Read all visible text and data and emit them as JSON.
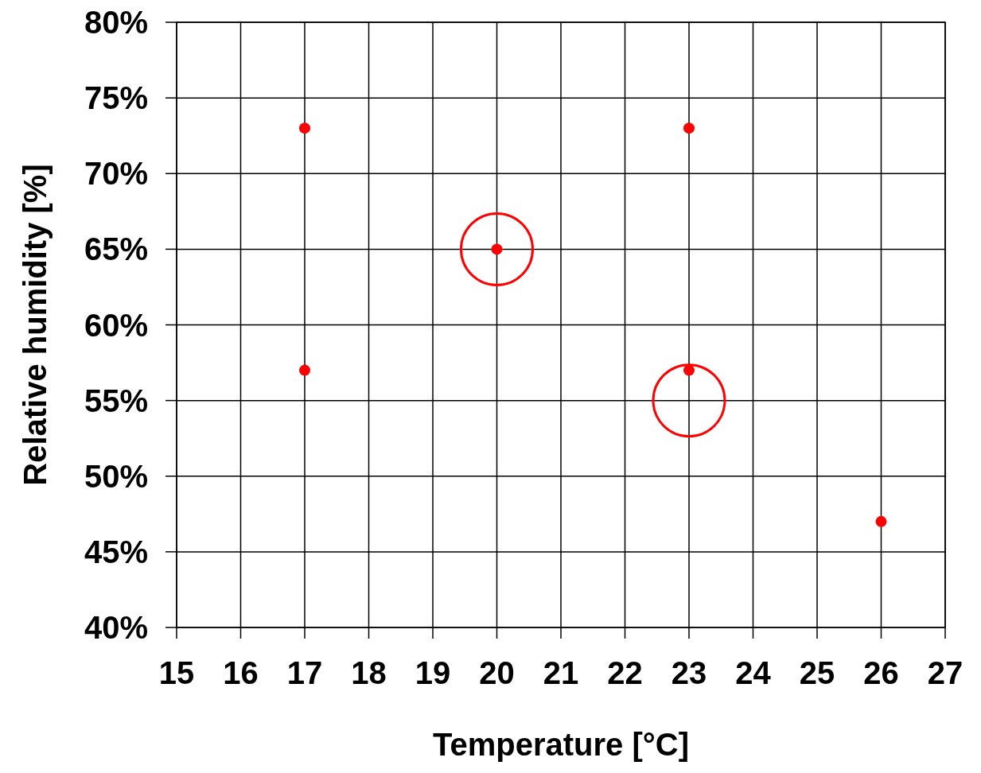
{
  "chart_data": {
    "type": "scatter",
    "xlabel": "Temperature [°C]",
    "ylabel": "Relative humidity [%]",
    "xlim": [
      15,
      27
    ],
    "xticks": [
      15,
      16,
      17,
      18,
      19,
      20,
      21,
      22,
      23,
      24,
      25,
      26,
      27
    ],
    "ylim": [
      40,
      80
    ],
    "yticks": [
      {
        "value": 40,
        "label": "40%"
      },
      {
        "value": 45,
        "label": "45%"
      },
      {
        "value": 50,
        "label": "50%"
      },
      {
        "value": 55,
        "label": "55%"
      },
      {
        "value": 60,
        "label": "60%"
      },
      {
        "value": 65,
        "label": "65%"
      },
      {
        "value": 70,
        "label": "70%"
      },
      {
        "value": 75,
        "label": "75%"
      },
      {
        "value": 80,
        "label": "80%"
      }
    ],
    "grid": true,
    "marker": "circle",
    "series": [
      {
        "color": "#ff0000",
        "x": [
          17,
          23,
          20,
          17,
          23,
          26
        ],
        "values": [
          73,
          73,
          65,
          57,
          57,
          47
        ]
      },
      {
        "type": "bubble",
        "color": "#ff0000",
        "x": [
          20,
          23
        ],
        "values": [
          65,
          55
        ],
        "sizes": [
          1,
          1
        ]
      }
    ]
  }
}
